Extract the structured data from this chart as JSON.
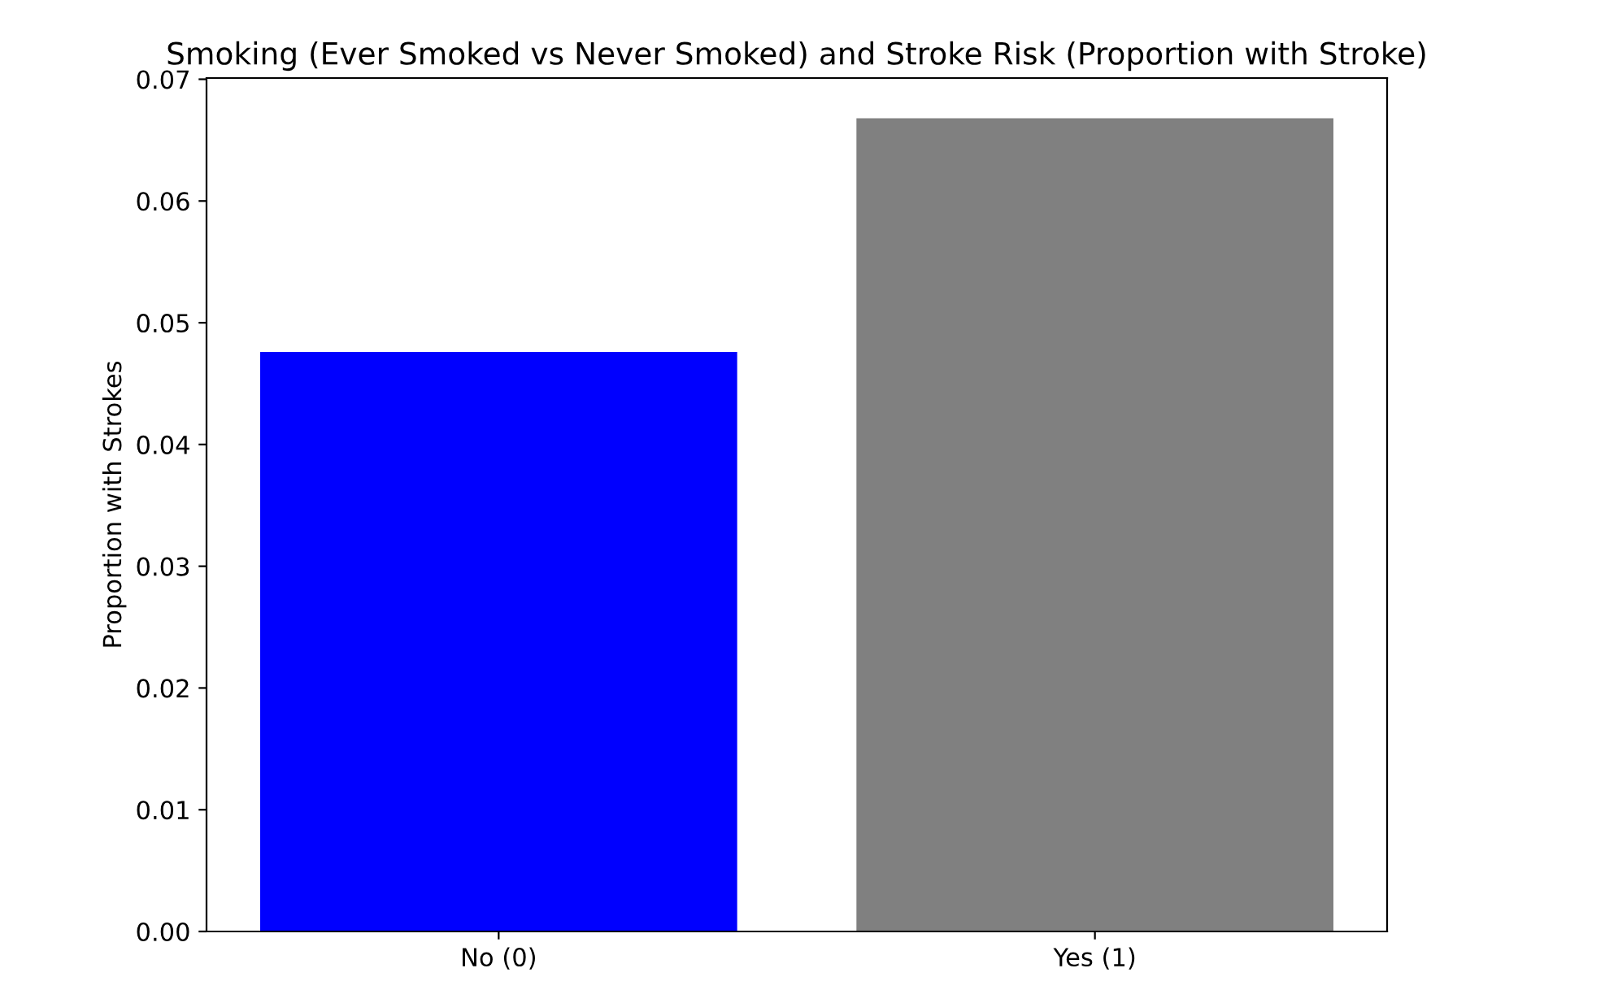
{
  "chart_data": {
    "type": "bar",
    "title": "Smoking (Ever Smoked vs Never Smoked) and Stroke Risk (Proportion with Stroke)",
    "ylabel": "Proportion with Strokes",
    "categories": [
      "No (0)",
      "Yes (1)"
    ],
    "values": [
      0.0476,
      0.0668
    ],
    "colors": [
      "#0000ff",
      "#808080"
    ],
    "ylim": [
      0,
      0.0701
    ],
    "yticks": [
      {
        "value": 0,
        "label": "0.00"
      },
      {
        "value": 0.01,
        "label": "0.01"
      },
      {
        "value": 0.02,
        "label": "0.02"
      },
      {
        "value": 0.03,
        "label": "0.03"
      },
      {
        "value": 0.04,
        "label": "0.04"
      },
      {
        "value": 0.05,
        "label": "0.05"
      },
      {
        "value": 0.06,
        "label": "0.06"
      },
      {
        "value": 0.07,
        "label": "0.07"
      }
    ],
    "grid": false
  }
}
